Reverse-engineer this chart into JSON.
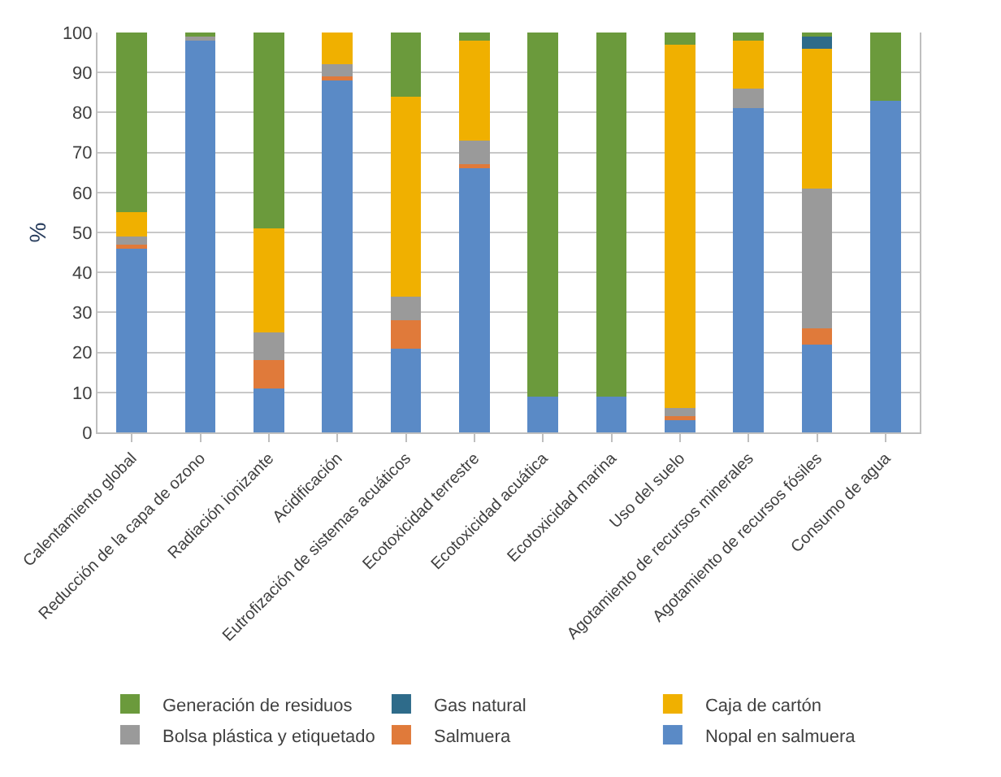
{
  "chart_data": {
    "type": "bar",
    "stacked": true,
    "ylabel": "%",
    "categories": [
      "Calentamiento global",
      "Reducción de la capa de ozono",
      "Radiación ionizante",
      "Acidificación",
      "Eutrofización de sistemas acuáticos",
      "Ecotoxicidad terrestre",
      "Ecotoxicidad acuática",
      "Ecotoxicidad marina",
      "Uso del suelo",
      "Agotamiento de recursos minerales",
      "Agotamiento de recursos fósiles",
      "Consumo de agua"
    ],
    "series": [
      {
        "name": "Nopal en salmuera",
        "color": "#5a8ac6",
        "values": [
          46,
          98,
          11,
          88,
          21,
          66,
          9,
          9,
          3,
          81,
          22,
          83
        ]
      },
      {
        "name": "Salmuera",
        "color": "#e07a3a",
        "values": [
          1,
          0,
          7,
          1,
          7,
          1,
          0,
          0,
          1,
          0,
          4,
          0
        ]
      },
      {
        "name": "Bolsa plástica y etiquetado",
        "color": "#9a9a9a",
        "values": [
          2,
          1,
          7,
          3,
          6,
          6,
          0,
          0,
          2,
          5,
          35,
          0
        ]
      },
      {
        "name": "Caja de cartón",
        "color": "#f0b000",
        "values": [
          6,
          0,
          26,
          8,
          50,
          25,
          0,
          0,
          91,
          12,
          35,
          0
        ]
      },
      {
        "name": "Gas natural",
        "color": "#2e6b8a",
        "values": [
          0,
          0,
          0,
          0,
          0,
          0,
          0,
          0,
          0,
          0,
          3,
          0
        ]
      },
      {
        "name": "Generación de residuos",
        "color": "#6b9a3c",
        "values": [
          45,
          1,
          49,
          0,
          16,
          2,
          91,
          91,
          3,
          2,
          1,
          17
        ]
      }
    ],
    "ylim": [
      0,
      100
    ],
    "yticks": [
      0,
      10,
      20,
      30,
      40,
      50,
      60,
      70,
      80,
      90,
      100
    ],
    "grid": "y",
    "legend": "bottom"
  }
}
